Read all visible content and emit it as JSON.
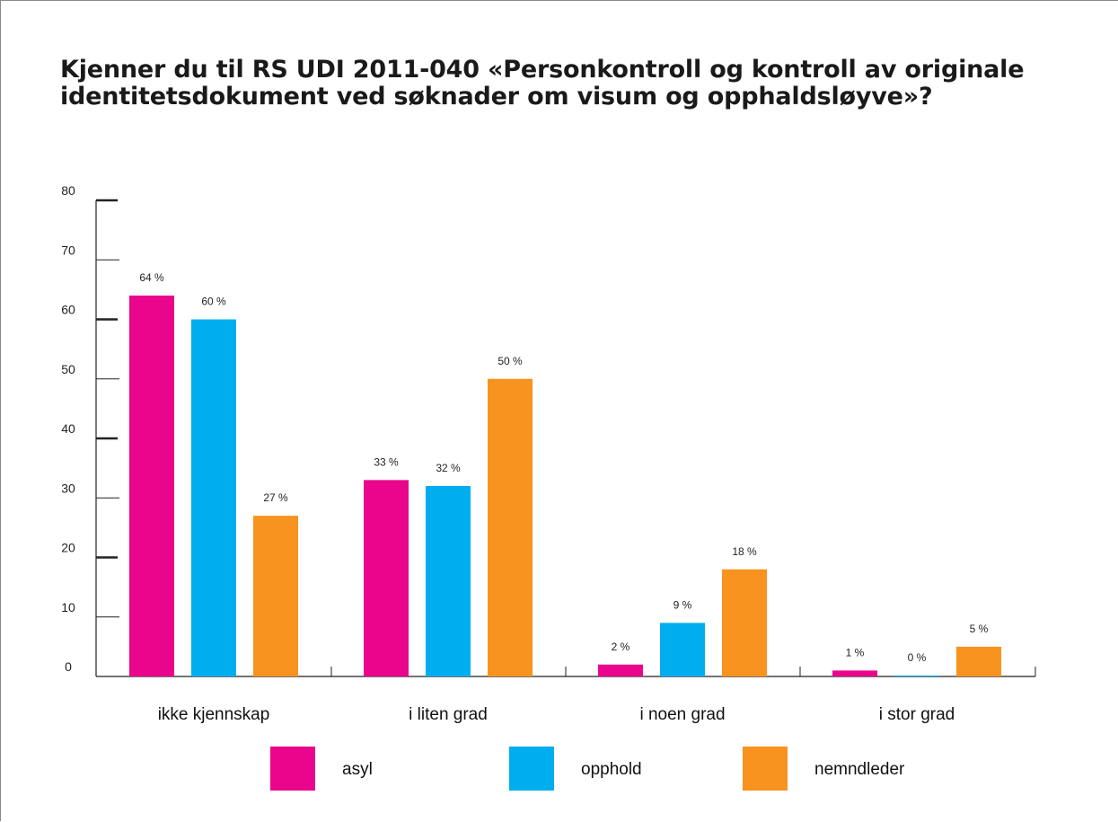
{
  "chart_data": {
    "type": "bar",
    "title": "Kjenner du til RS UDI 2011-040 «Personkontroll og kontroll av originale identitetsdokument ved søknader om visum og opphaldsløyve»?",
    "categories": [
      "ikke kjennskap",
      "i liten grad",
      "i noen grad",
      "i stor grad"
    ],
    "series": [
      {
        "name": "asyl",
        "color": "#ea068c",
        "values": [
          64,
          33,
          2,
          1
        ],
        "labels": [
          "64 %",
          "33 %",
          "2 %",
          "1 %"
        ]
      },
      {
        "name": "opphold",
        "color": "#00aeef",
        "values": [
          60,
          32,
          9,
          0
        ],
        "labels": [
          "60 %",
          "32 %",
          "9 %",
          "0 %"
        ]
      },
      {
        "name": "nemndleder",
        "color": "#f7931e",
        "values": [
          27,
          50,
          18,
          5
        ],
        "labels": [
          "27 %",
          "50 %",
          "18 %",
          "5 %"
        ]
      }
    ],
    "ylim": [
      0,
      80
    ],
    "yticks": [
      "0",
      "10",
      "20",
      "30",
      "40",
      "50",
      "60",
      "70",
      "80"
    ],
    "grid": false,
    "legend_position": "bottom"
  }
}
